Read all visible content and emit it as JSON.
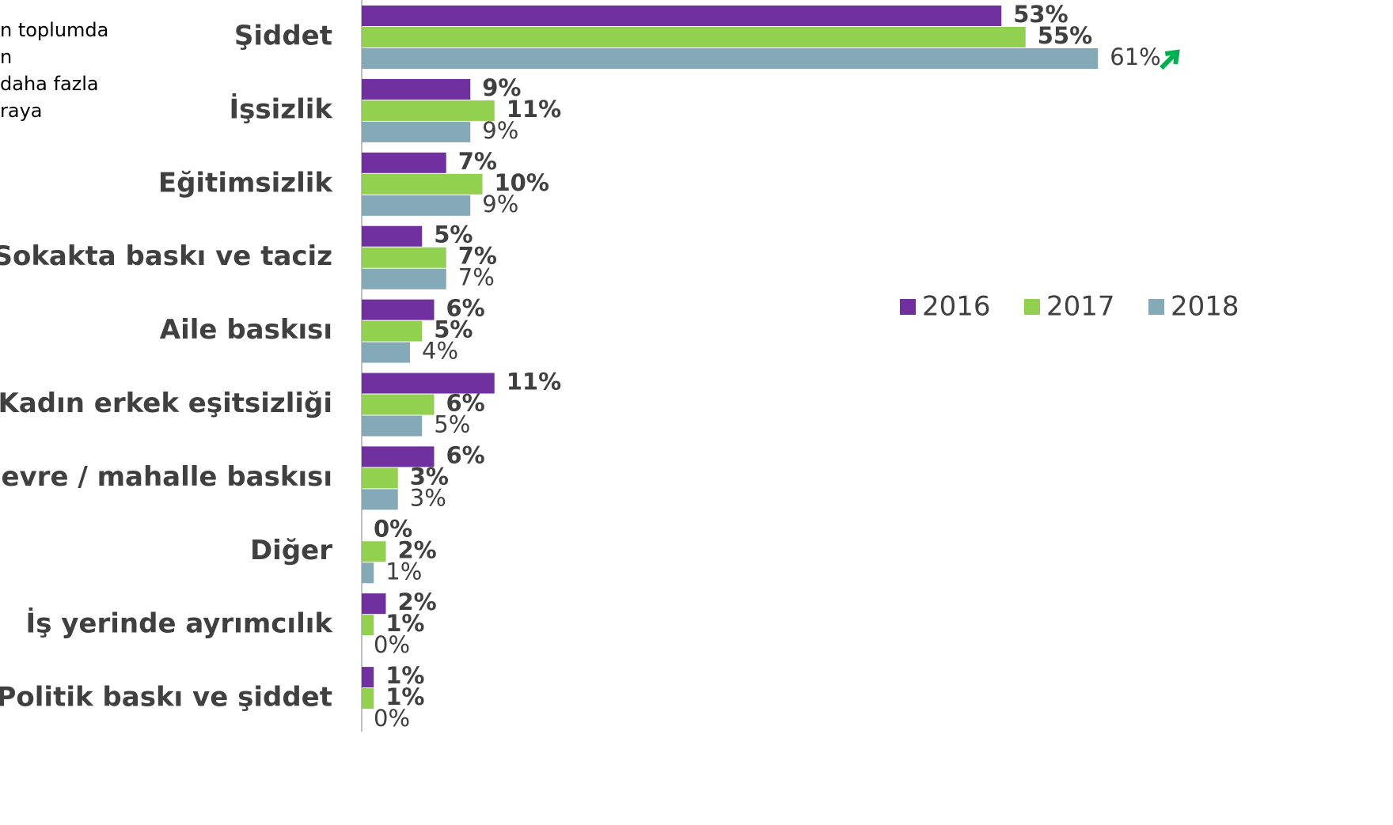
{
  "side_text": [
    "n toplumda",
    "n",
    "daha fazla",
    "raya"
  ],
  "chart_data": {
    "type": "hbar",
    "categories": [
      "Şiddet",
      "İşsizlik",
      "Eğitimsizlik",
      "Sokakta baskı ve taciz",
      "Aile baskısı",
      "Kadın erkek eşitsizliği",
      "Çevre / mahalle baskısı",
      "Diğer",
      "İş yerinde ayrımcılık",
      "Politik baskı ve şiddet"
    ],
    "series": [
      {
        "name": "2016",
        "color": "#7030a0",
        "values": [
          53,
          9,
          7,
          5,
          6,
          11,
          6,
          0,
          2,
          1
        ],
        "value_labels": [
          "53%",
          "9%",
          "7%",
          "5%",
          "6%",
          "11%",
          "6%",
          "0%",
          "2%",
          "1%"
        ]
      },
      {
        "name": "2017",
        "color": "#92d050",
        "values": [
          55,
          11,
          10,
          7,
          5,
          6,
          3,
          2,
          1,
          1
        ],
        "value_labels": [
          "55%",
          "11%",
          "10%",
          "7%",
          "5%",
          "6%",
          "3%",
          "2%",
          "1%",
          "1%"
        ]
      },
      {
        "name": "2018",
        "color": "#84aab8",
        "values": [
          61,
          9,
          9,
          7,
          4,
          5,
          3,
          1,
          0,
          0
        ],
        "value_labels": [
          "61%",
          "9%",
          "9%",
          "7%",
          "4%",
          "5%",
          "3%",
          "1%",
          "0%",
          "0%"
        ]
      }
    ],
    "xlim": [
      0,
      100
    ],
    "legend": "right"
  }
}
